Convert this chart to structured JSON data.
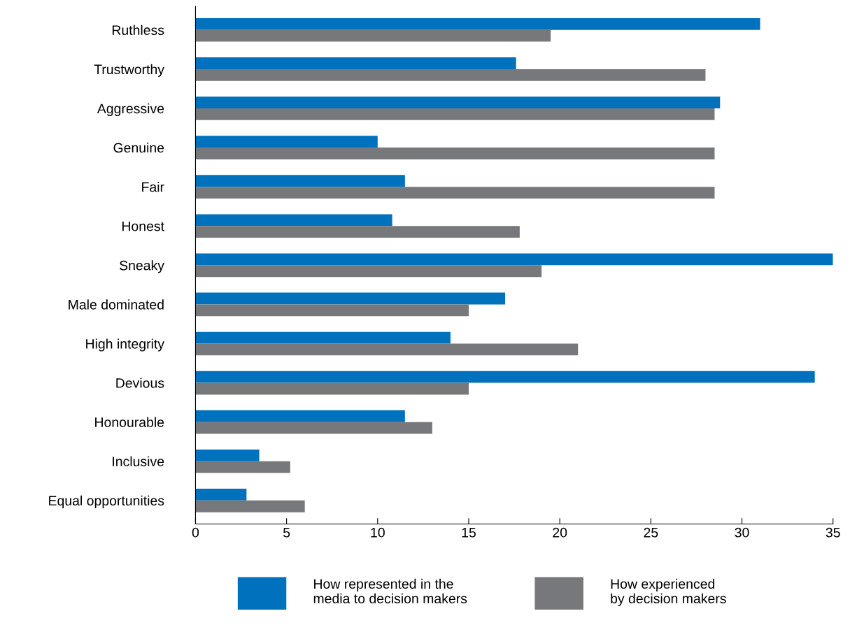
{
  "chart_data": {
    "type": "bar",
    "orientation": "horizontal",
    "categories": [
      "Ruthless",
      "Trustworthy",
      "Aggressive",
      "Genuine",
      "Fair",
      "Honest",
      "Sneaky",
      "Male dominated",
      "High integrity",
      "Devious",
      "Honourable",
      "Inclusive",
      "Equal opportunities"
    ],
    "series": [
      {
        "name": "How represented in the\nmedia to decision makers",
        "color": "#0071bc",
        "values": [
          31,
          17.6,
          28.8,
          10,
          11.5,
          10.8,
          35,
          17,
          14,
          34,
          11.5,
          3.5,
          2.8
        ]
      },
      {
        "name": "How experienced\nby decision makers",
        "color": "#77787b",
        "values": [
          19.5,
          28,
          28.5,
          28.5,
          28.5,
          17.8,
          19,
          15,
          21,
          15,
          13,
          5.2,
          6
        ]
      }
    ],
    "xlim": [
      0,
      35
    ],
    "xticks": [
      0,
      5,
      10,
      15,
      20,
      25,
      30,
      35
    ],
    "grid": false,
    "legend": "bottom"
  }
}
